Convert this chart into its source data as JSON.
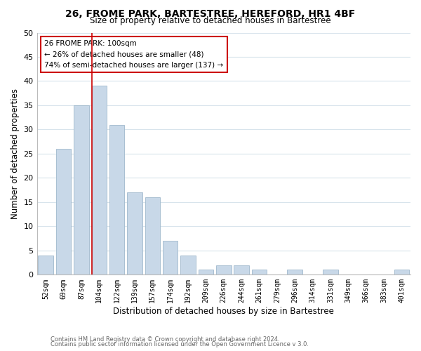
{
  "title": "26, FROME PARK, BARTESTREE, HEREFORD, HR1 4BF",
  "subtitle": "Size of property relative to detached houses in Bartestree",
  "xlabel": "Distribution of detached houses by size in Bartestree",
  "ylabel": "Number of detached properties",
  "bar_labels": [
    "52sqm",
    "69sqm",
    "87sqm",
    "104sqm",
    "122sqm",
    "139sqm",
    "157sqm",
    "174sqm",
    "192sqm",
    "209sqm",
    "226sqm",
    "244sqm",
    "261sqm",
    "279sqm",
    "296sqm",
    "314sqm",
    "331sqm",
    "349sqm",
    "366sqm",
    "383sqm",
    "401sqm"
  ],
  "bar_values": [
    4,
    26,
    35,
    39,
    31,
    17,
    16,
    7,
    4,
    1,
    2,
    2,
    1,
    0,
    1,
    0,
    1,
    0,
    0,
    0,
    1
  ],
  "bar_color": "#c8d8e8",
  "bar_edge_color": "#a0b8cc",
  "vline_x_index": 3,
  "vline_color": "#cc0000",
  "ylim": [
    0,
    50
  ],
  "yticks": [
    0,
    5,
    10,
    15,
    20,
    25,
    30,
    35,
    40,
    45,
    50
  ],
  "annotation_title": "26 FROME PARK: 100sqm",
  "annotation_line1": "← 26% of detached houses are smaller (48)",
  "annotation_line2": "74% of semi-detached houses are larger (137) →",
  "annotation_box_color": "#ffffff",
  "annotation_box_edge": "#cc0000",
  "footer1": "Contains HM Land Registry data © Crown copyright and database right 2024.",
  "footer2": "Contains public sector information licensed under the Open Government Licence v 3.0.",
  "background_color": "#ffffff",
  "grid_color": "#d8e4ec"
}
